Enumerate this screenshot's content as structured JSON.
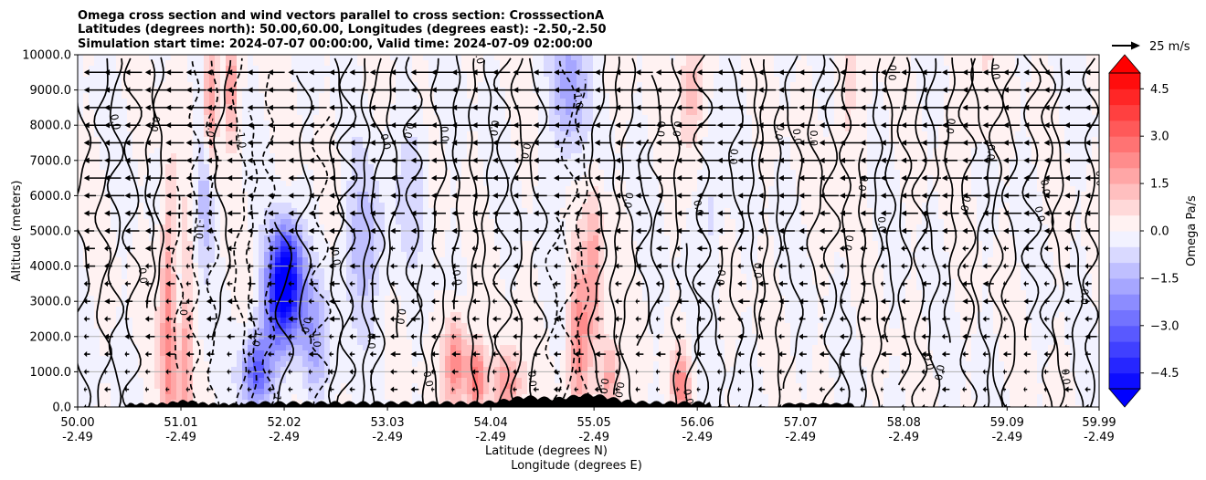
{
  "chart_data": {
    "type": "heatmap",
    "title_lines": [
      "Omega cross section and wind vectors parallel to cross section: CrosssectionA",
      "Latitudes (degrees north): 50.00,60.00, Longitudes (degrees east): -2.50,-2.50",
      "Simulation start time: 2024-07-07 00:00:00, Valid time: 2024-07-09 02:00:00"
    ],
    "ylabel": "Altitude (meters)",
    "xlabel_lines": [
      "Latitude (degrees N)",
      "Longitude (degrees E)"
    ],
    "xlim": [
      50.0,
      59.99
    ],
    "ylim": [
      0,
      10000
    ],
    "x_ticks": [
      {
        "value": 50.0,
        "lat": "50.00",
        "lon": "-2.49"
      },
      {
        "value": 51.01,
        "lat": "51.01",
        "lon": "-2.49"
      },
      {
        "value": 52.02,
        "lat": "52.02",
        "lon": "-2.49"
      },
      {
        "value": 53.03,
        "lat": "53.03",
        "lon": "-2.49"
      },
      {
        "value": 54.04,
        "lat": "54.04",
        "lon": "-2.49"
      },
      {
        "value": 55.05,
        "lat": "55.05",
        "lon": "-2.49"
      },
      {
        "value": 56.06,
        "lat": "56.06",
        "lon": "-2.49"
      },
      {
        "value": 57.07,
        "lat": "57.07",
        "lon": "-2.49"
      },
      {
        "value": 58.08,
        "lat": "58.08",
        "lon": "-2.49"
      },
      {
        "value": 59.09,
        "lat": "59.09",
        "lon": "-2.49"
      },
      {
        "value": 59.99,
        "lat": "59.99",
        "lon": "-2.49"
      }
    ],
    "y_ticks": [
      {
        "value": 0,
        "label": "0.0"
      },
      {
        "value": 1000,
        "label": "1000.0"
      },
      {
        "value": 2000,
        "label": "2000.0"
      },
      {
        "value": 3000,
        "label": "3000.0"
      },
      {
        "value": 4000,
        "label": "4000.0"
      },
      {
        "value": 5000,
        "label": "5000.0"
      },
      {
        "value": 6000,
        "label": "6000.0"
      },
      {
        "value": 7000,
        "label": "7000.0"
      },
      {
        "value": 8000,
        "label": "8000.0"
      },
      {
        "value": 9000,
        "label": "9000.0"
      },
      {
        "value": 10000,
        "label": "10000.0"
      }
    ],
    "grid": "horizontal",
    "colorbar": {
      "label": "Omega Pa/s",
      "vmin": -5.0,
      "vmax": 5.0,
      "levels": 20,
      "extend": "both",
      "ticks": [
        {
          "value": 4.5,
          "label": "4.5"
        },
        {
          "value": 3.0,
          "label": "3.0"
        },
        {
          "value": 1.5,
          "label": "1.5"
        },
        {
          "value": 0.0,
          "label": "0.0"
        },
        {
          "value": -1.5,
          "label": "−1.5"
        },
        {
          "value": -3.0,
          "label": "−3.0"
        },
        {
          "value": -4.5,
          "label": "−4.5"
        }
      ],
      "cmap": "bwr",
      "low_color": "#0000ff",
      "high_color": "#ff0000",
      "mid_color": "#ffffff"
    },
    "quiver_key": {
      "label": "25 m/s",
      "speed": 25
    },
    "omega_features": [
      {
        "x": 50.9,
        "z": 2500,
        "sx": 0.06,
        "sz": 2500,
        "v": 2.8
      },
      {
        "x": 51.05,
        "z": 2000,
        "sx": 0.05,
        "sz": 2000,
        "v": 2.5
      },
      {
        "x": 51.3,
        "z": 8500,
        "sx": 0.05,
        "sz": 1500,
        "v": 2.5
      },
      {
        "x": 51.5,
        "z": 9000,
        "sx": 0.04,
        "sz": 1200,
        "v": 2.0
      },
      {
        "x": 51.25,
        "z": 6000,
        "sx": 0.06,
        "sz": 1500,
        "v": -1.8
      },
      {
        "x": 51.0,
        "z": 3000,
        "sx": 0.06,
        "sz": 1400,
        "v": -1.6
      },
      {
        "x": 52.0,
        "z": 3000,
        "sx": 0.13,
        "sz": 1100,
        "v": -4.2
      },
      {
        "x": 52.05,
        "z": 4000,
        "sx": 0.1,
        "sz": 900,
        "v": -3.0
      },
      {
        "x": 51.75,
        "z": 1000,
        "sx": 0.1,
        "sz": 700,
        "v": -3.2
      },
      {
        "x": 52.3,
        "z": 1800,
        "sx": 0.1,
        "sz": 1200,
        "v": -1.6
      },
      {
        "x": 52.8,
        "z": 4500,
        "sx": 0.15,
        "sz": 1600,
        "v": -1.4
      },
      {
        "x": 53.3,
        "z": 6500,
        "sx": 0.1,
        "sz": 1500,
        "v": -0.9
      },
      {
        "x": 53.7,
        "z": 1300,
        "sx": 0.08,
        "sz": 900,
        "v": 2.6
      },
      {
        "x": 53.9,
        "z": 800,
        "sx": 0.06,
        "sz": 700,
        "v": 3.0
      },
      {
        "x": 54.2,
        "z": 600,
        "sx": 0.1,
        "sz": 700,
        "v": 2.2
      },
      {
        "x": 54.9,
        "z": 2000,
        "sx": 0.07,
        "sz": 1500,
        "v": 2.4
      },
      {
        "x": 55.05,
        "z": 3800,
        "sx": 0.06,
        "sz": 1700,
        "v": 1.8
      },
      {
        "x": 55.2,
        "z": 800,
        "sx": 0.07,
        "sz": 800,
        "v": 2.0
      },
      {
        "x": 54.8,
        "z": 9000,
        "sx": 0.12,
        "sz": 1500,
        "v": -1.8
      },
      {
        "x": 55.9,
        "z": 600,
        "sx": 0.06,
        "sz": 700,
        "v": 2.2
      },
      {
        "x": 56.2,
        "z": 5500,
        "sx": 0.08,
        "sz": 1500,
        "v": -0.8
      },
      {
        "x": 56.0,
        "z": 9000,
        "sx": 0.08,
        "sz": 1200,
        "v": 1.5
      },
      {
        "x": 57.5,
        "z": 8500,
        "sx": 0.1,
        "sz": 1500,
        "v": 0.7
      },
      {
        "x": 58.8,
        "z": 9000,
        "sx": 0.1,
        "sz": 1500,
        "v": 0.6
      }
    ]
  }
}
